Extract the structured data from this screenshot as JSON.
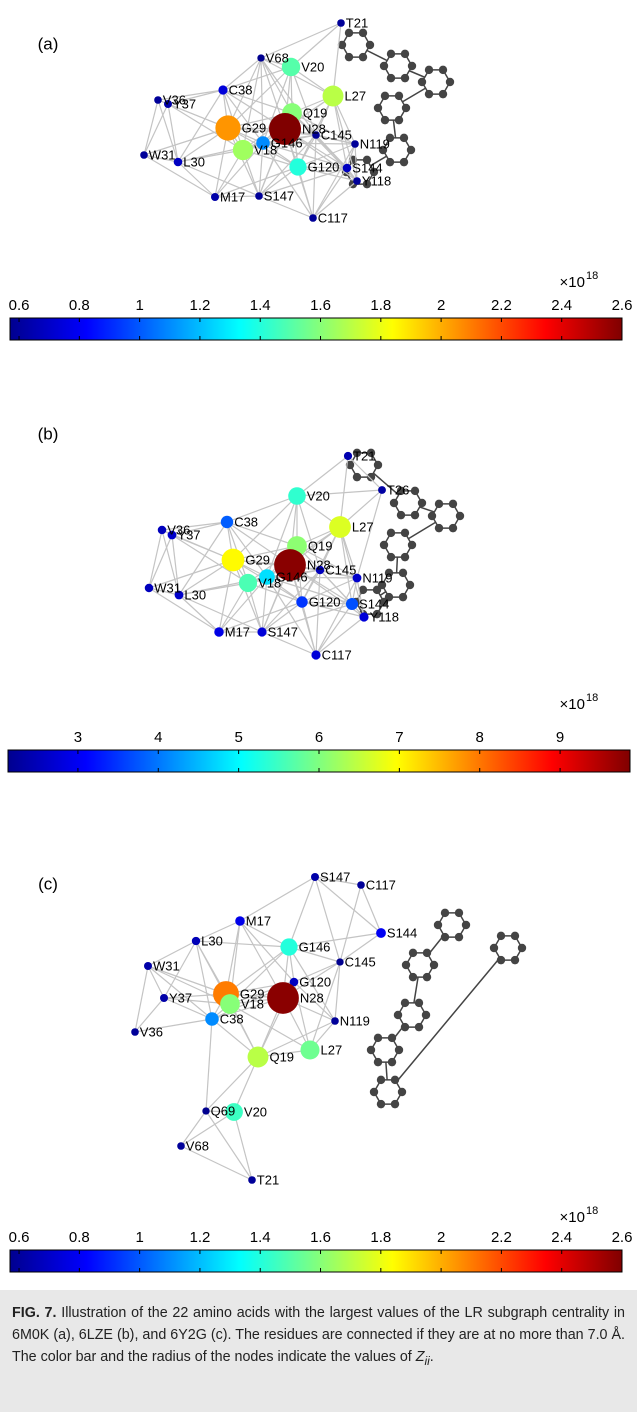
{
  "panels": [
    {
      "label": "(a)",
      "nodes": [
        {
          "name": "T21",
          "value": 0.62
        },
        {
          "name": "V68",
          "value": 0.6
        },
        {
          "name": "V20",
          "value": 1.5
        },
        {
          "name": "C38",
          "value": 0.75
        },
        {
          "name": "V36",
          "value": 0.62
        },
        {
          "name": "Y37",
          "value": 0.65
        },
        {
          "name": "L27",
          "value": 1.7
        },
        {
          "name": "Q19",
          "value": 1.6
        },
        {
          "name": "G29",
          "value": 2.05
        },
        {
          "name": "N28",
          "value": 2.6
        },
        {
          "name": "C145",
          "value": 0.62
        },
        {
          "name": "G146",
          "value": 1.1
        },
        {
          "name": "V18",
          "value": 1.65
        },
        {
          "name": "W31",
          "value": 0.62
        },
        {
          "name": "L30",
          "value": 0.7
        },
        {
          "name": "G120",
          "value": 1.4
        },
        {
          "name": "N119",
          "value": 0.62
        },
        {
          "name": "S144",
          "value": 0.7
        },
        {
          "name": "Y118",
          "value": 0.62
        },
        {
          "name": "M17",
          "value": 0.65
        },
        {
          "name": "S147",
          "value": 0.62
        },
        {
          "name": "C117",
          "value": 0.62
        }
      ],
      "colorbar": {
        "lim": [
          0.57,
          2.6
        ],
        "ticks": [
          0.6,
          0.8,
          1,
          1.2,
          1.4,
          1.6,
          1.8,
          2,
          2.2,
          2.4,
          2.6
        ],
        "exponent_base": "×10",
        "exponent": "18"
      }
    },
    {
      "label": "(b)",
      "nodes": [
        {
          "name": "T21",
          "value": 2.5
        },
        {
          "name": "V20",
          "value": 5.4
        },
        {
          "name": "T26",
          "value": 2.4
        },
        {
          "name": "C38",
          "value": 3.8
        },
        {
          "name": "V36",
          "value": 2.6
        },
        {
          "name": "Y37",
          "value": 2.7
        },
        {
          "name": "L27",
          "value": 6.7
        },
        {
          "name": "Q19",
          "value": 6.1
        },
        {
          "name": "G29",
          "value": 7
        },
        {
          "name": "N28",
          "value": 9.8
        },
        {
          "name": "C145",
          "value": 2.6
        },
        {
          "name": "G146",
          "value": 4.8
        },
        {
          "name": "V18",
          "value": 5.6
        },
        {
          "name": "N119",
          "value": 2.7
        },
        {
          "name": "W31",
          "value": 2.6
        },
        {
          "name": "L30",
          "value": 2.7
        },
        {
          "name": "G120",
          "value": 3.5
        },
        {
          "name": "S144",
          "value": 3.7
        },
        {
          "name": "Y118",
          "value": 2.8
        },
        {
          "name": "M17",
          "value": 2.9
        },
        {
          "name": "S147",
          "value": 2.8
        },
        {
          "name": "C117",
          "value": 2.8
        }
      ],
      "colorbar": {
        "lim": [
          2.13,
          9.87
        ],
        "ticks": [
          3,
          4,
          5,
          6,
          7,
          8,
          9
        ],
        "exponent_base": "×10",
        "exponent": "18"
      }
    },
    {
      "label": "(c)",
      "nodes": [
        {
          "name": "S147",
          "value": 0.65
        },
        {
          "name": "C117",
          "value": 0.62
        },
        {
          "name": "M17",
          "value": 0.78
        },
        {
          "name": "S144",
          "value": 0.8
        },
        {
          "name": "L30",
          "value": 0.68
        },
        {
          "name": "G146",
          "value": 1.4
        },
        {
          "name": "C145",
          "value": 0.6
        },
        {
          "name": "W31",
          "value": 0.65
        },
        {
          "name": "G120",
          "value": 0.7
        },
        {
          "name": "G29",
          "value": 2.1
        },
        {
          "name": "N28",
          "value": 2.58
        },
        {
          "name": "Y37",
          "value": 0.65
        },
        {
          "name": "V18",
          "value": 1.6
        },
        {
          "name": "C38",
          "value": 1.1
        },
        {
          "name": "N119",
          "value": 0.62
        },
        {
          "name": "V36",
          "value": 0.62
        },
        {
          "name": "L27",
          "value": 1.55
        },
        {
          "name": "Q19",
          "value": 1.7
        },
        {
          "name": "Q69",
          "value": 0.6
        },
        {
          "name": "V20",
          "value": 1.45
        },
        {
          "name": "V68",
          "value": 0.62
        },
        {
          "name": "T21",
          "value": 0.62
        }
      ],
      "colorbar": {
        "lim": [
          0.57,
          2.6
        ],
        "ticks": [
          0.6,
          0.8,
          1,
          1.2,
          1.4,
          1.6,
          1.8,
          2,
          2.2,
          2.4,
          2.6
        ],
        "exponent_base": "×10",
        "exponent": "18"
      }
    }
  ],
  "caption": {
    "label": "FIG. 7.",
    "text": "Illustration of the 22 amino acids with the largest values of the LR subgraph centrality in 6M0K (a), 6LZE (b), and 6Y2G (c). The residues are connected if they are at no more than 7.0 Å. The color bar and the radius of the nodes indicate the values of",
    "symbol": "Z",
    "subscript": "ii",
    "end": "."
  }
}
